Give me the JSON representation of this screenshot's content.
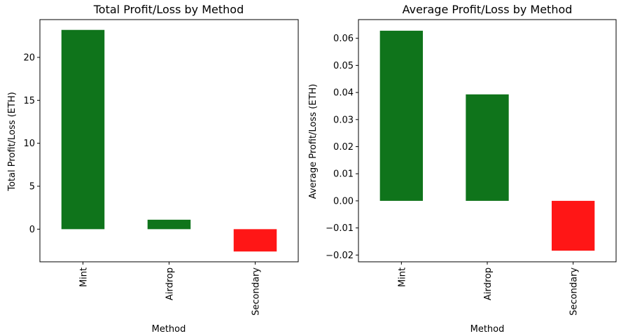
{
  "chart_data": [
    {
      "type": "bar",
      "title": "Total Profit/Loss by Method",
      "xlabel": "Method",
      "ylabel": "Total Profit/Loss (ETH)",
      "categories": [
        "Mint",
        "Airdrop",
        "Secondary"
      ],
      "values": [
        23.2,
        1.1,
        -2.6
      ],
      "bar_colors": [
        "#0f741b",
        "#0f741b",
        "#ff1616"
      ],
      "ylim": [
        -3.8,
        24.4
      ],
      "yticks": [
        0,
        5,
        10,
        15,
        20
      ],
      "ytick_labels": [
        "0",
        "5",
        "10",
        "15",
        "20"
      ],
      "grid": false
    },
    {
      "type": "bar",
      "title": "Average Profit/Loss by Method",
      "xlabel": "Method",
      "ylabel": "Average Profit/Loss (ETH)",
      "categories": [
        "Mint",
        "Airdrop",
        "Secondary"
      ],
      "values": [
        0.0628,
        0.0393,
        -0.0184
      ],
      "bar_colors": [
        "#0f741b",
        "#0f741b",
        "#ff1616"
      ],
      "ylim": [
        -0.0225,
        0.0669
      ],
      "yticks": [
        -0.02,
        -0.01,
        0.0,
        0.01,
        0.02,
        0.03,
        0.04,
        0.05,
        0.06
      ],
      "ytick_labels": [
        "−0.02",
        "−0.01",
        "0.00",
        "0.01",
        "0.02",
        "0.03",
        "0.04",
        "0.05",
        "0.06"
      ],
      "grid": false
    }
  ]
}
